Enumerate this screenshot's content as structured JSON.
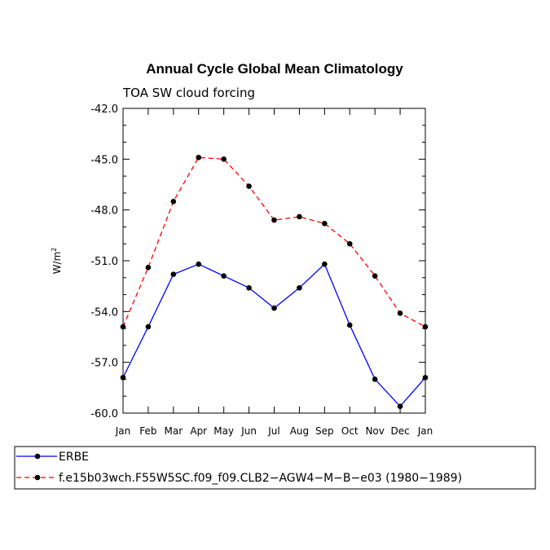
{
  "chart_data": {
    "type": "line",
    "title": "Annual Cycle Global Mean Climatology",
    "subtitle": "TOA SW cloud forcing",
    "ylabel_base": "W/m",
    "ylabel_sup": "2",
    "xlabel": "",
    "ylim": [
      -60.0,
      -42.0
    ],
    "yticks": [
      "-42.0",
      "-45.0",
      "-48.0",
      "-51.0",
      "-54.0",
      "-57.0",
      "-60.0"
    ],
    "ytick_values": [
      -42.0,
      -45.0,
      -48.0,
      -51.0,
      -54.0,
      -57.0,
      -60.0
    ],
    "categories": [
      "Jan",
      "Feb",
      "Mar",
      "Apr",
      "May",
      "Jun",
      "Jul",
      "Aug",
      "Sep",
      "Oct",
      "Nov",
      "Dec",
      "Jan"
    ],
    "series": [
      {
        "name": "ERBE",
        "color": "#0000ff",
        "dash": "solid",
        "values": [
          -57.9,
          -54.9,
          -51.8,
          -51.2,
          -51.9,
          -52.6,
          -53.8,
          -52.6,
          -51.2,
          -54.8,
          -58.0,
          -59.6,
          -57.9
        ]
      },
      {
        "name": "f.e15b03wch.F55W5SC.f09_f09.CLB2−AGW4−M−B−e03 (1980−1989)",
        "color": "#ff0000",
        "dash": "dashed",
        "values": [
          -54.9,
          -51.4,
          -47.5,
          -44.9,
          -45.0,
          -46.6,
          -48.6,
          -48.4,
          -48.8,
          -50.0,
          -51.9,
          -54.1,
          -54.9
        ]
      }
    ]
  }
}
